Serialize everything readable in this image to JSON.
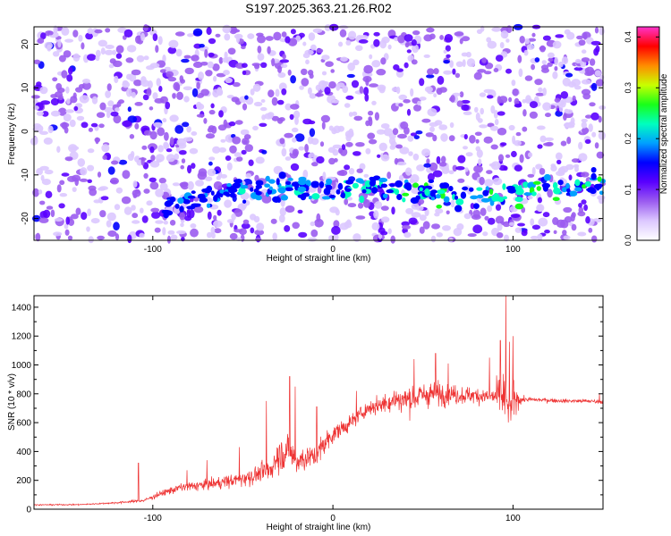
{
  "title": "S197.2025.363.21.26.R02",
  "chart_data": [
    {
      "type": "heatmap",
      "xlabel": "Height of straight line (km)",
      "ylabel": "Frequency (Hz)",
      "xlim": [
        -166,
        150
      ],
      "ylim": [
        -25,
        24
      ],
      "xticks": [
        -100,
        0,
        100
      ],
      "yticks": [
        -20,
        -10,
        0,
        10,
        20
      ],
      "colorbar": {
        "label": "Normalized spectral amplitude",
        "range": [
          0,
          0.42
        ],
        "ticks": [
          "0.0",
          "0.1",
          "0.2",
          "0.3",
          "0.4"
        ],
        "tick_values": [
          0,
          0.1,
          0.2,
          0.3,
          0.4
        ]
      },
      "colormap": [
        "#ffffff",
        "#dcc8ff",
        "#9b5cf0",
        "#5a00ff",
        "#0000ff",
        "#00a0ff",
        "#00ffbf",
        "#19ff19",
        "#c8ff00",
        "#ff8c00",
        "#ff0000",
        "#ff33cc"
      ],
      "feature": "dominant emission band near -13 Hz increasing in amplitude along the line",
      "band_hz": [
        [
          -93,
          -17
        ],
        [
          -60,
          -14
        ],
        [
          -40,
          -13
        ],
        [
          0,
          -13.5
        ],
        [
          30,
          -13
        ],
        [
          50,
          -14
        ],
        [
          90,
          -14.5
        ],
        [
          120,
          -13
        ],
        [
          150,
          -12.5
        ]
      ]
    },
    {
      "type": "line",
      "xlabel": "Height of straight line (km)",
      "ylabel": "SNR (10 * v/v)",
      "xlim": [
        -166,
        150
      ],
      "ylim": [
        0,
        1480
      ],
      "xticks": [
        -100,
        0,
        100
      ],
      "yticks": [
        0,
        200,
        400,
        600,
        800,
        1000,
        1200,
        1400
      ],
      "series": [
        {
          "name": "SNR",
          "color": "#ee3333",
          "x": [
            -166,
            -140,
            -120,
            -105,
            -95,
            -85,
            -70,
            -55,
            -45,
            -35,
            -30,
            -25,
            -20,
            -15,
            -10,
            -5,
            0,
            5,
            10,
            15,
            20,
            25,
            30,
            35,
            40,
            45,
            50,
            55,
            60,
            65,
            70,
            75,
            80,
            85,
            90,
            95,
            98,
            100,
            102,
            105,
            110,
            120,
            130,
            140,
            150
          ],
          "y": [
            30,
            32,
            45,
            60,
            110,
            150,
            170,
            200,
            230,
            270,
            380,
            400,
            330,
            360,
            360,
            450,
            520,
            560,
            600,
            660,
            700,
            720,
            740,
            760,
            760,
            770,
            790,
            800,
            800,
            800,
            790,
            790,
            790,
            780,
            780,
            780,
            700,
            740,
            760,
            760,
            760,
            755,
            750,
            750,
            745
          ],
          "amp": [
            8,
            8,
            12,
            20,
            40,
            55,
            70,
            85,
            110,
            150,
            200,
            240,
            170,
            170,
            150,
            140,
            120,
            110,
            100,
            90,
            90,
            110,
            140,
            160,
            180,
            180,
            170,
            160,
            150,
            130,
            120,
            110,
            100,
            120,
            160,
            350,
            300,
            250,
            140,
            40,
            30,
            28,
            25,
            25,
            25
          ],
          "peaks": [
            [
              -108,
              320
            ],
            [
              -37,
              750
            ],
            [
              -24,
              920
            ],
            [
              -21,
              850
            ],
            [
              -9,
              710
            ],
            [
              45,
              1040
            ],
            [
              87,
              1050
            ],
            [
              96,
              1480
            ],
            [
              93,
              1170
            ],
            [
              100,
              1200
            ],
            [
              98,
              1160
            ],
            [
              57,
              1080
            ],
            [
              64,
              1010
            ],
            [
              13,
              820
            ],
            [
              -81,
              270
            ],
            [
              -70,
              340
            ],
            [
              -52,
              430
            ],
            [
              148,
              800
            ]
          ]
        }
      ]
    }
  ]
}
